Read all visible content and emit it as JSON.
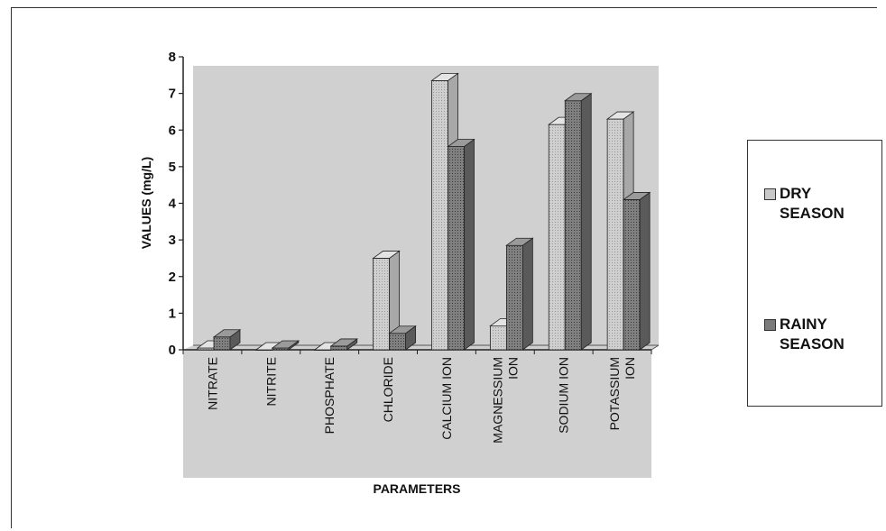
{
  "chart_data": {
    "type": "bar",
    "title": "",
    "xlabel": "PARAMETERS",
    "ylabel": "VALUES (mg/L)",
    "ylim": [
      0,
      8
    ],
    "yticks": [
      "0",
      "1",
      "2",
      "3",
      "4",
      "5",
      "6",
      "7",
      "8"
    ],
    "categories": [
      "NITRATE",
      "NITRITE",
      "PHOSPHATE",
      "CHLORIDE",
      "CALCIUM ION",
      "MAGNESSIUM ION",
      "SODIUM ION",
      "POTASSIUM ION"
    ],
    "category_lines": [
      [
        "NITRATE"
      ],
      [
        "NITRITE"
      ],
      [
        "PHOSPHATE"
      ],
      [
        "CHLORIDE"
      ],
      [
        "CALCIUM ION"
      ],
      [
        "MAGNESSIUM",
        "ION"
      ],
      [
        "SODIUM ION"
      ],
      [
        "POTASSIUM",
        "ION"
      ]
    ],
    "series": [
      {
        "name": "DRY SEASON",
        "values": [
          0.05,
          0.0,
          0.0,
          2.5,
          7.35,
          0.65,
          6.15,
          6.3
        ],
        "color": "#c8c8c8"
      },
      {
        "name": "RAINY SEASON",
        "values": [
          0.35,
          0.05,
          0.1,
          0.45,
          5.55,
          2.85,
          6.8,
          4.1
        ],
        "color": "#7a7a7a"
      }
    ],
    "legend": {
      "position": "right",
      "items": [
        {
          "lines": [
            "DRY",
            "SEASON"
          ]
        },
        {
          "lines": [
            "RAINY",
            "SEASON"
          ]
        }
      ]
    },
    "grid": false,
    "style": "3d-clustered-column"
  }
}
